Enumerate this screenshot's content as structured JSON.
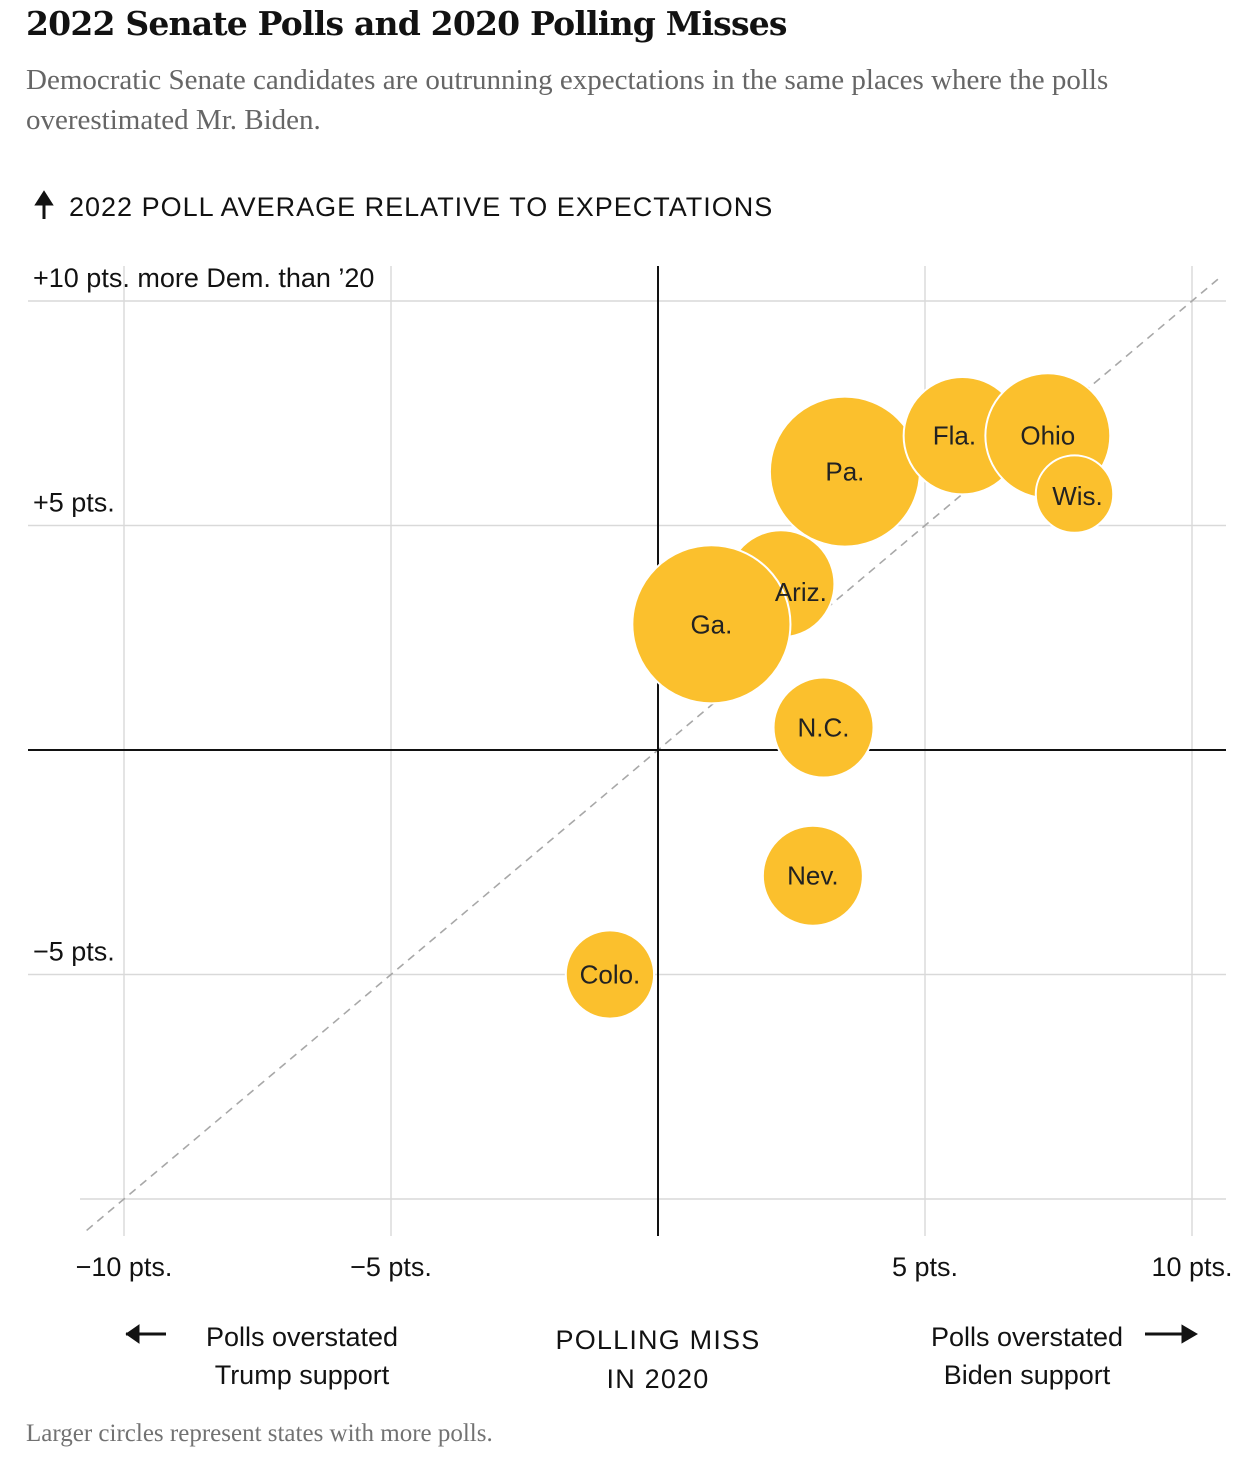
{
  "title": "2022 Senate Polls and 2020 Polling Misses",
  "subtitle": "Democratic Senate candidates are outrunning expectations in the same places where the polls overestimated Mr. Biden.",
  "footnote": "Larger circles represent states with more polls.",
  "colors": {
    "bubble": "#fbc02d",
    "grid": "#d9d9d9",
    "axis": "#121212",
    "diagonal": "#a8a8a8",
    "text": "#121212"
  },
  "chart_data": {
    "type": "scatter",
    "ylabel": "2022 POLL AVERAGE RELATIVE TO EXPECTATIONS",
    "xlabel": [
      "POLLING MISS",
      "IN 2020"
    ],
    "xlim": [
      -10.9,
      10.6
    ],
    "ylim": [
      -10.5,
      10.8
    ],
    "x_ticks": [
      {
        "value": -10,
        "label": "−10 pts."
      },
      {
        "value": -5,
        "label": "−5 pts."
      },
      {
        "value": 5,
        "label": "5 pts."
      },
      {
        "value": 10,
        "label": "10 pts."
      }
    ],
    "y_ticks": [
      {
        "value": 10,
        "label": "+10 pts. more Dem. than ’20"
      },
      {
        "value": 5,
        "label": "+5 pts."
      },
      {
        "value": -5,
        "label": "−5 pts."
      }
    ],
    "y_grid": [
      10,
      5,
      -5,
      -10
    ],
    "x_grid": [
      -10,
      -5,
      5,
      10
    ],
    "reference_line": "y = x",
    "left_annotation": [
      "Polls overstated",
      "Trump support"
    ],
    "right_annotation": [
      "Polls overstated",
      "Biden support"
    ],
    "size_meaning": "number of polls (relative)",
    "points": [
      {
        "label": "Colo.",
        "x": -0.9,
        "y": -5.0,
        "size": 0.78
      },
      {
        "label": "Nev.",
        "x": 2.9,
        "y": -2.8,
        "size": 1.0
      },
      {
        "label": "N.C.",
        "x": 3.1,
        "y": 0.5,
        "size": 1.0
      },
      {
        "label": "Ariz.",
        "x": 2.3,
        "y": 3.7,
        "size": 1.15
      },
      {
        "label": "Ga.",
        "x": 1.0,
        "y": 2.8,
        "size": 2.5
      },
      {
        "label": "Pa.",
        "x": 3.5,
        "y": 6.2,
        "size": 2.25
      },
      {
        "label": "Fla.",
        "x": 5.7,
        "y": 7.0,
        "size": 1.38
      },
      {
        "label": "Ohio",
        "x": 7.3,
        "y": 7.0,
        "size": 1.56
      },
      {
        "label": "Wis.",
        "x": 7.8,
        "y": 5.7,
        "size": 0.6
      }
    ]
  }
}
